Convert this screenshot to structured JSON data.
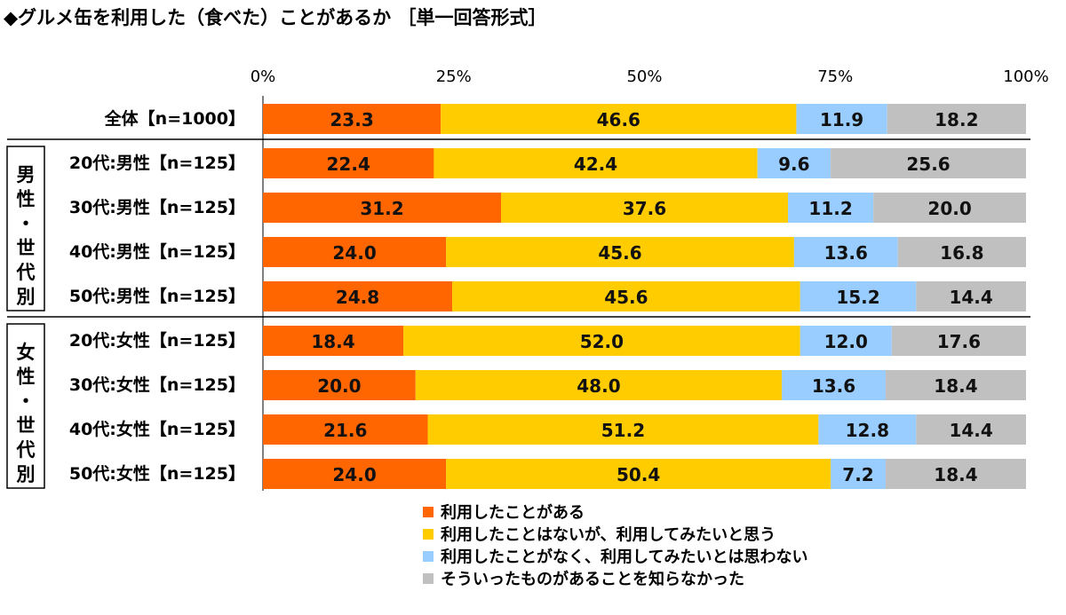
{
  "title": "◆グルメ缶を利用した（食べた）ことがあるか ［単一回答形式］",
  "chart_data": {
    "type": "bar",
    "orientation": "horizontal",
    "stacked": "percent",
    "xlim": [
      0,
      100
    ],
    "x_ticks": [
      "0%",
      "25%",
      "50%",
      "75%",
      "100%"
    ],
    "categories": [
      "全体【n=1000】",
      "20代:男性【n=125】",
      "30代:男性【n=125】",
      "40代:男性【n=125】",
      "50代:男性【n=125】",
      "20代:女性【n=125】",
      "30代:女性【n=125】",
      "40代:女性【n=125】",
      "50代:女性【n=125】"
    ],
    "groups": [
      {
        "label": "男性・世代別",
        "chars": [
          "男",
          "性",
          "・",
          "世",
          "代",
          "別"
        ]
      },
      {
        "label": "女性・世代別",
        "chars": [
          "女",
          "性",
          "・",
          "世",
          "代",
          "別"
        ]
      }
    ],
    "series": [
      {
        "name": "利用したことがある",
        "color": "#ff6600",
        "values": [
          23.3,
          22.4,
          31.2,
          24.0,
          24.8,
          18.4,
          20.0,
          21.6,
          24.0
        ]
      },
      {
        "name": "利用したことはないが、利用してみたいと思う",
        "color": "#ffcc00",
        "values": [
          46.6,
          42.4,
          37.6,
          45.6,
          45.6,
          52.0,
          48.0,
          51.2,
          50.4
        ]
      },
      {
        "name": "利用したことがなく、利用してみたいとは思わない",
        "color": "#99ccff",
        "values": [
          11.9,
          9.6,
          11.2,
          13.6,
          15.2,
          12.0,
          13.6,
          12.8,
          7.2
        ]
      },
      {
        "name": "そういったものがあることを知らなかった",
        "color": "#c0c0c0",
        "values": [
          18.2,
          25.6,
          20.0,
          16.8,
          14.4,
          17.6,
          18.4,
          14.4,
          18.4
        ]
      }
    ],
    "legend": "bottom",
    "grid": false
  }
}
